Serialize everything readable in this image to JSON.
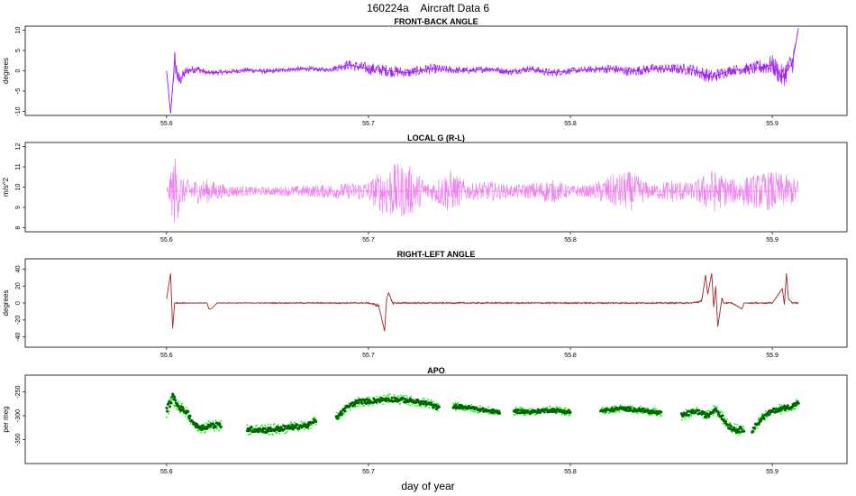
{
  "title": "160224a    Aircraft Data 6",
  "xlabel": "day of year",
  "chart_data": [
    {
      "type": "line",
      "title": "FRONT-BACK ANGLE",
      "ylabel": "degrees",
      "xlim": [
        55.53,
        55.937
      ],
      "ylim": [
        -11,
        11
      ],
      "x_ticks": [
        "55.6",
        "55.7",
        "55.8",
        "55.9"
      ],
      "y_ticks": [
        "-10",
        "-5",
        "0",
        "5",
        "10"
      ],
      "color": "#a020f0",
      "series": [
        {
          "x": [
            55.6,
            55.602,
            55.604,
            55.606,
            55.61,
            55.615,
            55.62,
            55.63,
            55.64,
            55.65,
            55.66,
            55.67,
            55.68,
            55.69,
            55.7,
            55.71,
            55.72,
            55.73,
            55.74,
            55.75,
            55.76,
            55.77,
            55.78,
            55.79,
            55.8,
            55.81,
            55.82,
            55.83,
            55.84,
            55.85,
            55.86,
            55.87,
            55.88,
            55.89,
            55.9,
            55.905,
            55.91,
            55.913
          ],
          "y": [
            0,
            -10.5,
            2.5,
            -2.5,
            0,
            0.5,
            -0.5,
            -0.3,
            0.2,
            -0.2,
            0.3,
            0.5,
            0.2,
            1.5,
            0.5,
            0,
            -0.5,
            0.5,
            0.2,
            0,
            0.5,
            -0.3,
            0.5,
            -0.5,
            0,
            0.3,
            0.5,
            -0.2,
            0.5,
            0.5,
            0.3,
            -1.5,
            0.2,
            0.5,
            1.5,
            -1.5,
            2,
            10.5
          ],
          "noise": [
            0,
            0,
            3,
            2,
            1,
            1,
            0.6,
            0.6,
            0.6,
            0.6,
            0.6,
            0.6,
            0.5,
            1.2,
            1.5,
            1.5,
            1.2,
            1.3,
            1,
            0.8,
            0.8,
            0.8,
            0.8,
            1,
            0.8,
            0.8,
            1.2,
            1.2,
            1.2,
            1.2,
            1.5,
            1.8,
            1.2,
            1.5,
            2.5,
            3,
            3,
            0
          ]
        }
      ]
    },
    {
      "type": "line",
      "title": "LOCAL G (R-L)",
      "ylabel": "m/s^2",
      "xlim": [
        55.53,
        55.937
      ],
      "ylim": [
        7.8,
        12.2
      ],
      "x_ticks": [
        "55.6",
        "55.7",
        "55.8",
        "55.9"
      ],
      "y_ticks": [
        "8",
        "9",
        "10",
        "11",
        "12"
      ],
      "color": "#ee82ee",
      "series": [
        {
          "x": [
            55.6,
            55.604,
            55.608,
            55.62,
            55.63,
            55.65,
            55.67,
            55.69,
            55.7,
            55.71,
            55.72,
            55.73,
            55.74,
            55.75,
            55.76,
            55.77,
            55.78,
            55.79,
            55.8,
            55.81,
            55.82,
            55.83,
            55.84,
            55.85,
            55.86,
            55.87,
            55.88,
            55.89,
            55.9,
            55.913
          ],
          "y": [
            9.8,
            9.8,
            9.8,
            9.8,
            9.8,
            9.8,
            9.8,
            9.8,
            9.8,
            9.8,
            9.8,
            9.8,
            9.8,
            9.8,
            9.8,
            9.8,
            9.8,
            9.8,
            9.8,
            9.8,
            9.8,
            9.8,
            9.8,
            9.8,
            9.8,
            9.8,
            9.8,
            9.8,
            9.8,
            9.8
          ],
          "noise": [
            0,
            1.9,
            0.6,
            0.6,
            0.3,
            0.2,
            0.3,
            0.4,
            0.5,
            1.4,
            1.3,
            0.4,
            1.1,
            0.4,
            0.5,
            0.3,
            0.4,
            0.6,
            0.3,
            0.3,
            0.8,
            1.0,
            0.3,
            0.6,
            0.4,
            1.1,
            0.6,
            0.8,
            1.0,
            0.6
          ]
        }
      ]
    },
    {
      "type": "line",
      "title": "RIGHT-LEFT ANGLE",
      "ylabel": "degrees",
      "xlim": [
        55.53,
        55.937
      ],
      "ylim": [
        -52,
        52
      ],
      "x_ticks": [
        "55.6",
        "55.7",
        "55.8",
        "55.9"
      ],
      "y_ticks": [
        "-40",
        "-20",
        "0",
        "20",
        "40"
      ],
      "color": "#a52a2a",
      "series": [
        {
          "x": [
            55.6,
            55.602,
            55.603,
            55.604,
            55.605,
            55.606,
            55.61,
            55.62,
            55.621,
            55.622,
            55.625,
            55.7,
            55.705,
            55.708,
            55.709,
            55.71,
            55.712,
            55.715,
            55.8,
            55.86,
            55.865,
            55.867,
            55.868,
            55.87,
            55.871,
            55.872,
            55.873,
            55.875,
            55.876,
            55.88,
            55.885,
            55.886,
            55.89,
            55.895,
            55.9,
            55.905,
            55.906,
            55.907,
            55.908,
            55.91,
            55.913
          ],
          "y": [
            5,
            35,
            -30,
            0,
            0,
            0,
            0,
            0,
            -7,
            -7,
            0,
            0,
            -3,
            -33,
            5,
            12,
            0,
            0,
            0,
            0,
            2,
            33,
            10,
            35,
            -5,
            20,
            -28,
            5,
            0,
            0,
            -7,
            0,
            0,
            0,
            0,
            17,
            -2,
            35,
            5,
            0,
            0
          ],
          "noise": [
            0,
            0,
            0,
            0,
            1,
            1,
            0.5,
            0.5,
            0,
            0,
            0.5,
            1,
            2,
            0,
            0,
            0,
            2,
            1,
            1,
            1,
            2,
            0,
            0,
            0,
            0,
            0,
            0,
            2,
            1,
            1,
            0,
            0,
            1,
            1,
            1,
            0,
            0,
            0,
            0,
            1,
            1
          ]
        }
      ]
    },
    {
      "type": "scatter",
      "title": "APO",
      "ylabel": "per meg",
      "xlim": [
        55.53,
        55.937
      ],
      "ylim": [
        -400,
        -215
      ],
      "x_ticks": [
        "55.6",
        "55.7",
        "55.8",
        "55.9"
      ],
      "y_ticks": [
        "-250",
        "-300",
        "-350"
      ],
      "colors": {
        "raw": "#00ff00",
        "smoothed": "#006400"
      },
      "series": [
        {
          "name": "",
          "segments": [
            {
              "x": [
                55.6,
                55.603,
                55.606,
                55.61,
                55.614,
                55.618,
                55.622,
                55.627
              ],
              "y": [
                -290,
                -260,
                -282,
                -292,
                -320,
                -325,
                -320,
                -320
              ],
              "noise": [
                18,
                16,
                12,
                12,
                12,
                12,
                12,
                12
              ]
            },
            {
              "x": [
                55.64,
                55.65,
                55.66,
                55.67,
                55.674
              ],
              "y": [
                -328,
                -330,
                -325,
                -320,
                -310
              ],
              "noise": [
                12,
                12,
                12,
                10,
                10
              ]
            },
            {
              "x": [
                55.684,
                55.69,
                55.695,
                55.7,
                55.71,
                55.72,
                55.73,
                55.735
              ],
              "y": [
                -305,
                -280,
                -270,
                -270,
                -265,
                -268,
                -275,
                -285
              ],
              "noise": [
                10,
                10,
                10,
                10,
                10,
                10,
                10,
                10
              ]
            },
            {
              "x": [
                55.742,
                55.75,
                55.76,
                55.765
              ],
              "y": [
                -280,
                -283,
                -290,
                -293
              ],
              "noise": [
                8,
                8,
                8,
                8
              ]
            },
            {
              "x": [
                55.772,
                55.78,
                55.79,
                55.8
              ],
              "y": [
                -290,
                -292,
                -288,
                -292
              ],
              "noise": [
                8,
                8,
                8,
                8
              ]
            },
            {
              "x": [
                55.815,
                55.825,
                55.835,
                55.845
              ],
              "y": [
                -290,
                -285,
                -288,
                -295
              ],
              "noise": [
                8,
                8,
                8,
                8
              ]
            },
            {
              "x": [
                55.855,
                55.862,
                55.868,
                55.872,
                55.878,
                55.882,
                55.886
              ],
              "y": [
                -300,
                -290,
                -300,
                -285,
                -320,
                -330,
                -328
              ],
              "noise": [
                10,
                10,
                10,
                10,
                12,
                12,
                12
              ]
            },
            {
              "x": [
                55.89,
                55.895,
                55.9,
                55.905,
                55.91,
                55.913
              ],
              "y": [
                -330,
                -305,
                -290,
                -285,
                -280,
                -272
              ],
              "noise": [
                10,
                10,
                10,
                10,
                10,
                10
              ]
            }
          ]
        }
      ]
    }
  ]
}
